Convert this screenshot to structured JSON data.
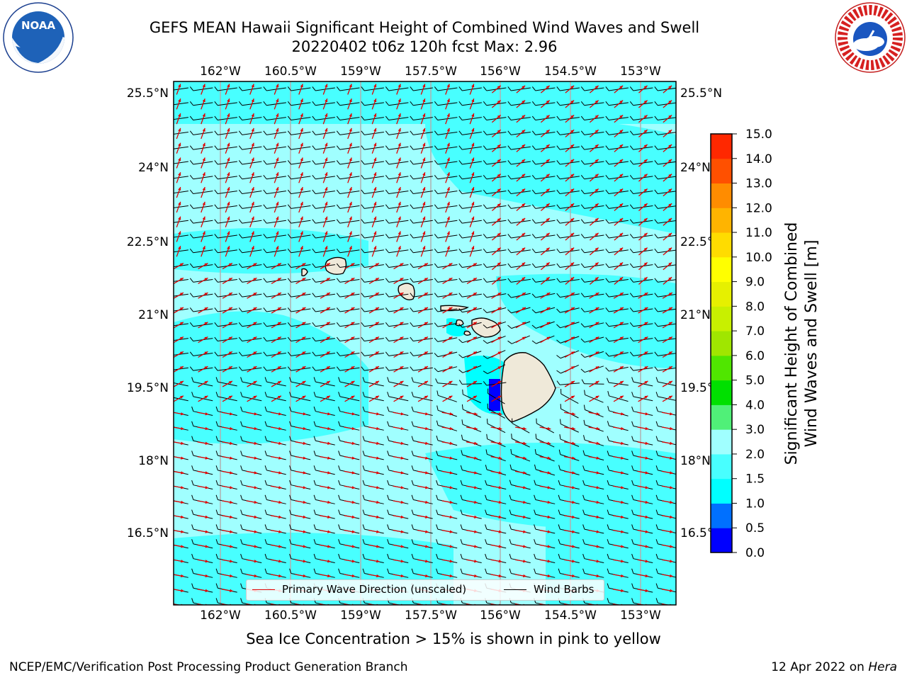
{
  "header": {
    "title_line1": "GEFS MEAN Hawaii Significant Height of Combined Wind Waves and Swell",
    "title_line2": "20220402 t06z 120h fcst   Max: 2.96"
  },
  "logos": {
    "noaa": {
      "name": "NOAA",
      "ring_text": "NATIONAL OCEANIC AND ATMOSPHERIC ADMINISTRATION · U.S. DEPARTMENT OF COMMERCE"
    },
    "nws": {
      "ring_text": "NATIONAL WEATHER SERVICE"
    }
  },
  "map": {
    "lon_labels": [
      "162°W",
      "160.5°W",
      "159°W",
      "157.5°W",
      "156°W",
      "154.5°W",
      "153°W"
    ],
    "lat_labels": [
      "25.5°N",
      "24°N",
      "22.5°N",
      "21°N",
      "19.5°N",
      "18°N",
      "16.5°N"
    ],
    "ocean_colors": {
      "light": "#a0ffff",
      "medium": "#48ffff",
      "cyan": "#00ffff",
      "blue": "#0070ff",
      "deep": "#0000ff"
    },
    "land_color": "#efe9d9",
    "wave_arrow_color": "#e00000",
    "barb_color": "#000000",
    "gridline_color": "#b0b0b0"
  },
  "legend": {
    "wave_label": "Primary Wave Direction (unscaled)",
    "barb_label": "Wind Barbs"
  },
  "colorbar": {
    "label_line1": "Significant Height of Combined",
    "label_line2": "Wind Waves and Swell [m]",
    "ticks": [
      "0.0",
      "0.5",
      "1.0",
      "1.5",
      "2.0",
      "3.0",
      "4.0",
      "5.0",
      "6.0",
      "7.0",
      "8.0",
      "9.0",
      "10.0",
      "11.0",
      "12.0",
      "13.0",
      "14.0",
      "15.0"
    ],
    "colors": [
      "#0000ff",
      "#0070ff",
      "#00ffff",
      "#48ffff",
      "#a0ffff",
      "#50f078",
      "#00e000",
      "#50e600",
      "#a0e600",
      "#c8f000",
      "#e6f000",
      "#ffff00",
      "#ffdc00",
      "#ffb400",
      "#ff8c00",
      "#ff5000",
      "#ff2800"
    ]
  },
  "sea_ice_note": "Sea Ice Concentration > 15% is shown in pink to yellow",
  "footer": {
    "left": "NCEP/EMC/Verification Post Processing Product Generation Branch",
    "right_prefix": "12 Apr 2022 on ",
    "right_host": "Hera"
  }
}
